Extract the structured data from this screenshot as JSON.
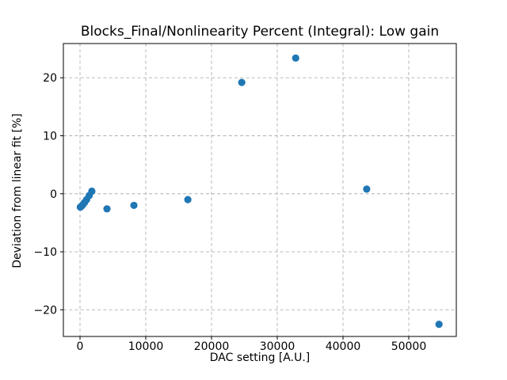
{
  "figure": {
    "background": "#ffffff"
  },
  "chart_data": {
    "type": "scatter",
    "title": "Blocks_Final/Nonlinearity Percent (Integral): Low gain",
    "xlabel": "DAC setting [A.U.]",
    "ylabel": "Deviation from linear fit [%]",
    "marker_color": "#1f77b4",
    "marker_shape": "circle",
    "grid": true,
    "grid_color": "#b0b0b0",
    "grid_style": "dashed",
    "axis_color": "#000000",
    "legend": "none",
    "xlim": [
      -2530,
      57230
    ],
    "ylim": [
      -24.6,
      25.9
    ],
    "xticks": [
      0,
      10000,
      20000,
      30000,
      40000,
      50000
    ],
    "yticks": [
      -20,
      -10,
      0,
      10,
      20
    ],
    "points": [
      {
        "x": 50,
        "y": -2.3
      },
      {
        "x": 120,
        "y": -2.25
      },
      {
        "x": 250,
        "y": -2.1
      },
      {
        "x": 450,
        "y": -1.85
      },
      {
        "x": 700,
        "y": -1.5
      },
      {
        "x": 1000,
        "y": -1.0
      },
      {
        "x": 1400,
        "y": -0.3
      },
      {
        "x": 1800,
        "y": 0.45
      },
      {
        "x": 4100,
        "y": -2.6
      },
      {
        "x": 8200,
        "y": -2.0
      },
      {
        "x": 16400,
        "y": -1.0
      },
      {
        "x": 24600,
        "y": 19.2
      },
      {
        "x": 32800,
        "y": 23.4
      },
      {
        "x": 43600,
        "y": 0.8
      },
      {
        "x": 54600,
        "y": -22.5
      }
    ]
  }
}
